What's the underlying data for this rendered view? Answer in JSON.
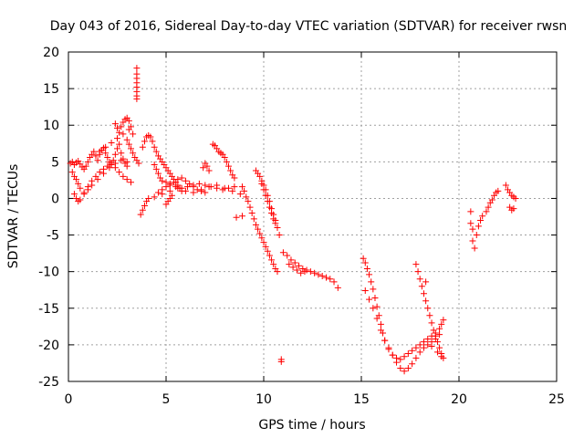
{
  "chart_data": {
    "type": "scatter",
    "title": "Day 043 of 2016, Sidereal Day-to-day VTEC variation (SDTVAR) for receiver rwsn",
    "xlabel": "GPS time / hours",
    "ylabel": "SDTVAR / TECUs",
    "xlim": [
      0,
      25
    ],
    "ylim": [
      -25,
      20
    ],
    "xticks": [
      0,
      5,
      10,
      15,
      20,
      25
    ],
    "yticks": [
      -25,
      -20,
      -15,
      -10,
      -5,
      0,
      5,
      10,
      15,
      20
    ],
    "grid": true,
    "marker": "plus",
    "marker_color": "#ff0000",
    "series": [
      {
        "name": "SDTVAR",
        "x": [
          0.1,
          0.2,
          0.3,
          0.4,
          0.5,
          0.6,
          0.7,
          0.8,
          0.9,
          1.0,
          1.1,
          1.2,
          1.3,
          1.4,
          1.5,
          1.6,
          1.7,
          1.8,
          1.9,
          2.0,
          2.1,
          2.2,
          2.3,
          2.4,
          2.5,
          2.6,
          2.7,
          2.8,
          2.9,
          3.0,
          0.2,
          0.3,
          0.4,
          0.5,
          0.6,
          0.8,
          1.0,
          1.2,
          1.4,
          1.6,
          1.8,
          2.0,
          2.2,
          2.4,
          2.6,
          2.8,
          3.0,
          3.2,
          0.3,
          0.4,
          0.5,
          0.6,
          0.8,
          1.0,
          1.2,
          1.5,
          1.8,
          2.1,
          2.4,
          2.7,
          3.0,
          1.6,
          1.9,
          2.2,
          2.5,
          2.8,
          3.1,
          2.4,
          2.5,
          2.6,
          2.7,
          2.8,
          2.9,
          3.0,
          3.1,
          3.2,
          3.3,
          3.0,
          3.1,
          3.2,
          3.3,
          3.4,
          3.5,
          3.6,
          3.5,
          3.5,
          3.5,
          3.5,
          3.5,
          3.5,
          3.5,
          3.5,
          3.8,
          3.9,
          4.0,
          4.1,
          4.2,
          4.3,
          4.4,
          4.5,
          4.6,
          4.7,
          4.8,
          4.9,
          5.0,
          5.1,
          5.2,
          5.3,
          5.4,
          5.5,
          5.6,
          5.7,
          5.8,
          4.4,
          4.5,
          4.6,
          4.7,
          4.8,
          5.0,
          5.2,
          5.4,
          5.6,
          5.8,
          6.0,
          6.2,
          6.4,
          6.6,
          6.8,
          7.0,
          3.7,
          3.8,
          3.9,
          4.0,
          4.1,
          4.6,
          4.8,
          5.0,
          5.2,
          5.5,
          5.8,
          6.1,
          6.4,
          6.7,
          7.0,
          7.3,
          7.6,
          7.9,
          8.2,
          8.5,
          4.4,
          4.8,
          5.2,
          5.6,
          6.0,
          6.4,
          6.8,
          7.2,
          7.6,
          8.0,
          8.4,
          8.8,
          5.0,
          5.1,
          5.2,
          5.3,
          6.9,
          7.0,
          7.1,
          7.2,
          7.4,
          7.5,
          7.6,
          7.7,
          7.8,
          7.9,
          8.0,
          8.1,
          8.2,
          8.3,
          8.4,
          8.5,
          8.9,
          9.0,
          9.1,
          9.2,
          9.3,
          9.4,
          9.5,
          9.6,
          9.7,
          9.8,
          9.9,
          10.0,
          10.1,
          10.2,
          10.3,
          10.4,
          10.5,
          10.6,
          10.7,
          9.6,
          9.7,
          9.8,
          9.9,
          10.0,
          10.1,
          10.2,
          10.3,
          10.4,
          10.5,
          10.6,
          10.7,
          10.8,
          9.9,
          10.0,
          10.1,
          10.2,
          10.3,
          10.4,
          10.5,
          10.6,
          8.6,
          8.9,
          10.9,
          10.9,
          11.0,
          11.2,
          11.4,
          11.6,
          11.8,
          12.0,
          12.2,
          12.4,
          12.6,
          12.8,
          13.0,
          13.2,
          13.4,
          13.6,
          13.8,
          11.3,
          11.5,
          11.7,
          11.9,
          12.1,
          15.1,
          15.2,
          15.3,
          15.4,
          15.5,
          15.6,
          15.7,
          15.8,
          15.9,
          16.0,
          16.1,
          16.2,
          16.4,
          16.6,
          16.8,
          17.0,
          17.2,
          17.4,
          17.6,
          17.8,
          18.0,
          18.2,
          18.4,
          18.6,
          18.8,
          19.0,
          15.2,
          15.4,
          15.6,
          15.8,
          16.0,
          16.2,
          16.4,
          16.6,
          16.8,
          17.0,
          17.2,
          17.4,
          17.6,
          17.8,
          18.0,
          18.2,
          18.4,
          18.6,
          18.8,
          19.0,
          19.1,
          19.2,
          17.8,
          17.9,
          18.0,
          18.1,
          18.2,
          18.3,
          18.4,
          18.5,
          18.6,
          18.7,
          18.8,
          18.9,
          19.0,
          19.1,
          19.2,
          18.3,
          18.6,
          18.9,
          19.1,
          20.6,
          20.6,
          20.7,
          20.7,
          20.8,
          20.9,
          21.0,
          21.1,
          21.2,
          21.4,
          21.5,
          21.6,
          21.7,
          21.8,
          21.9,
          22.0,
          22.4,
          22.5,
          22.6,
          22.7,
          22.8,
          22.9,
          22.6,
          22.7,
          22.8
        ],
        "y": [
          4.8,
          5.0,
          4.6,
          4.9,
          5.1,
          4.7,
          4.3,
          4.0,
          4.4,
          5.0,
          5.6,
          6.0,
          6.4,
          5.8,
          5.2,
          6.0,
          6.6,
          6.9,
          6.2,
          5.6,
          5.0,
          4.6,
          5.2,
          6.0,
          6.8,
          7.4,
          6.2,
          5.4,
          4.8,
          4.4,
          3.6,
          3.0,
          2.6,
          2.0,
          1.4,
          0.8,
          1.6,
          2.4,
          3.0,
          3.6,
          4.0,
          4.4,
          4.8,
          4.2,
          3.6,
          3.0,
          2.6,
          2.2,
          0.6,
          0.0,
          -0.4,
          -0.2,
          0.6,
          1.2,
          1.8,
          2.6,
          3.4,
          4.2,
          4.8,
          5.2,
          5.0,
          6.4,
          7.0,
          7.6,
          8.2,
          8.8,
          9.4,
          10.2,
          9.6,
          9.0,
          9.8,
          10.4,
          10.8,
          11.0,
          10.6,
          9.8,
          8.8,
          8.0,
          7.4,
          6.8,
          6.2,
          5.6,
          5.2,
          4.8,
          17.8,
          17.0,
          16.4,
          15.8,
          15.2,
          14.6,
          14.0,
          13.6,
          7.0,
          7.8,
          8.4,
          8.6,
          8.4,
          7.8,
          7.0,
          6.4,
          5.8,
          5.4,
          5.0,
          4.6,
          4.2,
          3.8,
          3.4,
          3.0,
          2.6,
          2.2,
          1.8,
          1.4,
          1.0,
          4.6,
          4.0,
          3.4,
          2.8,
          2.4,
          2.2,
          2.0,
          2.2,
          2.6,
          2.8,
          2.4,
          2.0,
          1.6,
          1.2,
          1.0,
          0.8,
          -2.2,
          -1.6,
          -1.0,
          -0.4,
          0.0,
          0.8,
          1.2,
          1.6,
          1.8,
          1.6,
          1.4,
          1.6,
          1.8,
          2.0,
          1.8,
          1.6,
          1.4,
          1.2,
          1.4,
          1.6,
          0.2,
          0.6,
          1.0,
          1.4,
          1.0,
          0.8,
          1.2,
          1.6,
          1.8,
          1.4,
          1.0,
          0.6,
          -0.8,
          -0.4,
          0.0,
          0.4,
          4.2,
          4.8,
          4.4,
          3.8,
          7.4,
          7.2,
          6.8,
          6.4,
          6.2,
          6.0,
          5.6,
          5.0,
          4.4,
          3.8,
          3.2,
          2.8,
          1.6,
          1.0,
          0.2,
          -0.4,
          -1.2,
          -2.0,
          -2.8,
          -3.6,
          -4.2,
          -4.8,
          -5.4,
          -6.0,
          -6.6,
          -7.2,
          -7.8,
          -8.4,
          -9.0,
          -9.6,
          -10.0,
          3.8,
          3.4,
          3.0,
          2.4,
          1.8,
          1.2,
          0.4,
          -0.4,
          -1.4,
          -2.2,
          -3.0,
          -4.0,
          -5.0,
          2.0,
          1.2,
          0.4,
          -0.4,
          -1.2,
          -2.0,
          -2.8,
          -3.4,
          -2.6,
          -2.4,
          -22.0,
          -22.3,
          -7.4,
          -7.8,
          -8.4,
          -8.8,
          -9.2,
          -9.6,
          -9.8,
          -10.0,
          -10.2,
          -10.4,
          -10.6,
          -10.8,
          -11.0,
          -11.4,
          -12.2,
          -9.0,
          -9.4,
          -9.8,
          -10.2,
          -10.0,
          -8.2,
          -8.8,
          -9.6,
          -10.4,
          -11.4,
          -12.4,
          -13.6,
          -14.8,
          -16.0,
          -17.2,
          -18.4,
          -19.4,
          -20.4,
          -21.4,
          -22.4,
          -23.2,
          -23.6,
          -23.2,
          -22.6,
          -21.8,
          -21.0,
          -20.4,
          -20.0,
          -19.6,
          -19.2,
          -18.6,
          -12.6,
          -13.8,
          -15.0,
          -16.4,
          -18.0,
          -19.4,
          -20.6,
          -21.4,
          -21.8,
          -22.0,
          -21.6,
          -21.2,
          -20.8,
          -20.4,
          -20.0,
          -19.6,
          -19.2,
          -18.8,
          -18.4,
          -17.8,
          -17.2,
          -16.6,
          -9.0,
          -10.0,
          -11.0,
          -12.0,
          -13.0,
          -14.0,
          -15.0,
          -16.0,
          -17.0,
          -18.0,
          -18.8,
          -19.6,
          -20.4,
          -21.2,
          -21.8,
          -11.4,
          -20.2,
          -21.0,
          -21.6,
          -1.8,
          -3.4,
          -4.2,
          -5.8,
          -6.8,
          -5.0,
          -3.8,
          -3.0,
          -2.4,
          -1.8,
          -1.2,
          -0.6,
          -0.2,
          0.4,
          0.8,
          1.0,
          1.8,
          1.2,
          0.8,
          0.4,
          0.2,
          0.0,
          -1.2,
          -1.6,
          -1.4
        ]
      }
    ]
  }
}
